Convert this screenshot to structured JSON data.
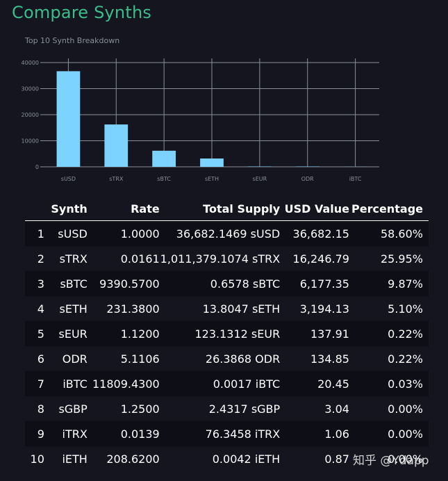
{
  "page": {
    "title": "Compare Synths"
  },
  "chart_data": {
    "type": "bar",
    "title": "Top 10 Synth Breakdown",
    "categories": [
      "sUSD",
      "sTRX",
      "sBTC",
      "sETH",
      "sEUR",
      "ODR",
      "iBTC"
    ],
    "values": [
      36682.15,
      16246.79,
      6177.35,
      3194.13,
      137.91,
      134.85,
      20.45
    ],
    "ylim": [
      0,
      40000
    ],
    "yticks": [
      0,
      10000,
      20000,
      30000,
      40000
    ],
    "grid": true,
    "bar_color": "#7dd3ff"
  },
  "table": {
    "headers": [
      "",
      "Synth",
      "Rate",
      "Total Supply",
      "USD Value",
      "Percentage"
    ],
    "rows": [
      [
        "1",
        "sUSD",
        "1.0000",
        "36,682.1469 sUSD",
        "36,682.15",
        "58.60%"
      ],
      [
        "2",
        "sTRX",
        "0.0161",
        "1,011,379.1074 sTRX",
        "16,246.79",
        "25.95%"
      ],
      [
        "3",
        "sBTC",
        "9390.5700",
        "0.6578 sBTC",
        "6,177.35",
        "9.87%"
      ],
      [
        "4",
        "sETH",
        "231.3800",
        "13.8047 sETH",
        "3,194.13",
        "5.10%"
      ],
      [
        "5",
        "sEUR",
        "1.1200",
        "123.1312 sEUR",
        "137.91",
        "0.22%"
      ],
      [
        "6",
        "ODR",
        "5.1106",
        "26.3868 ODR",
        "134.85",
        "0.22%"
      ],
      [
        "7",
        "iBTC",
        "11809.4300",
        "0.0017 iBTC",
        "20.45",
        "0.03%"
      ],
      [
        "8",
        "sGBP",
        "1.2500",
        "2.4317 sGBP",
        "3.04",
        "0.00%"
      ],
      [
        "9",
        "iTRX",
        "0.0139",
        "76.3458 iTRX",
        "1.06",
        "0.00%"
      ],
      [
        "10",
        "iETH",
        "208.6200",
        "0.0042 iETH",
        "0.87",
        "0.00%"
      ]
    ]
  },
  "watermark": "知乎 @Ydapp"
}
